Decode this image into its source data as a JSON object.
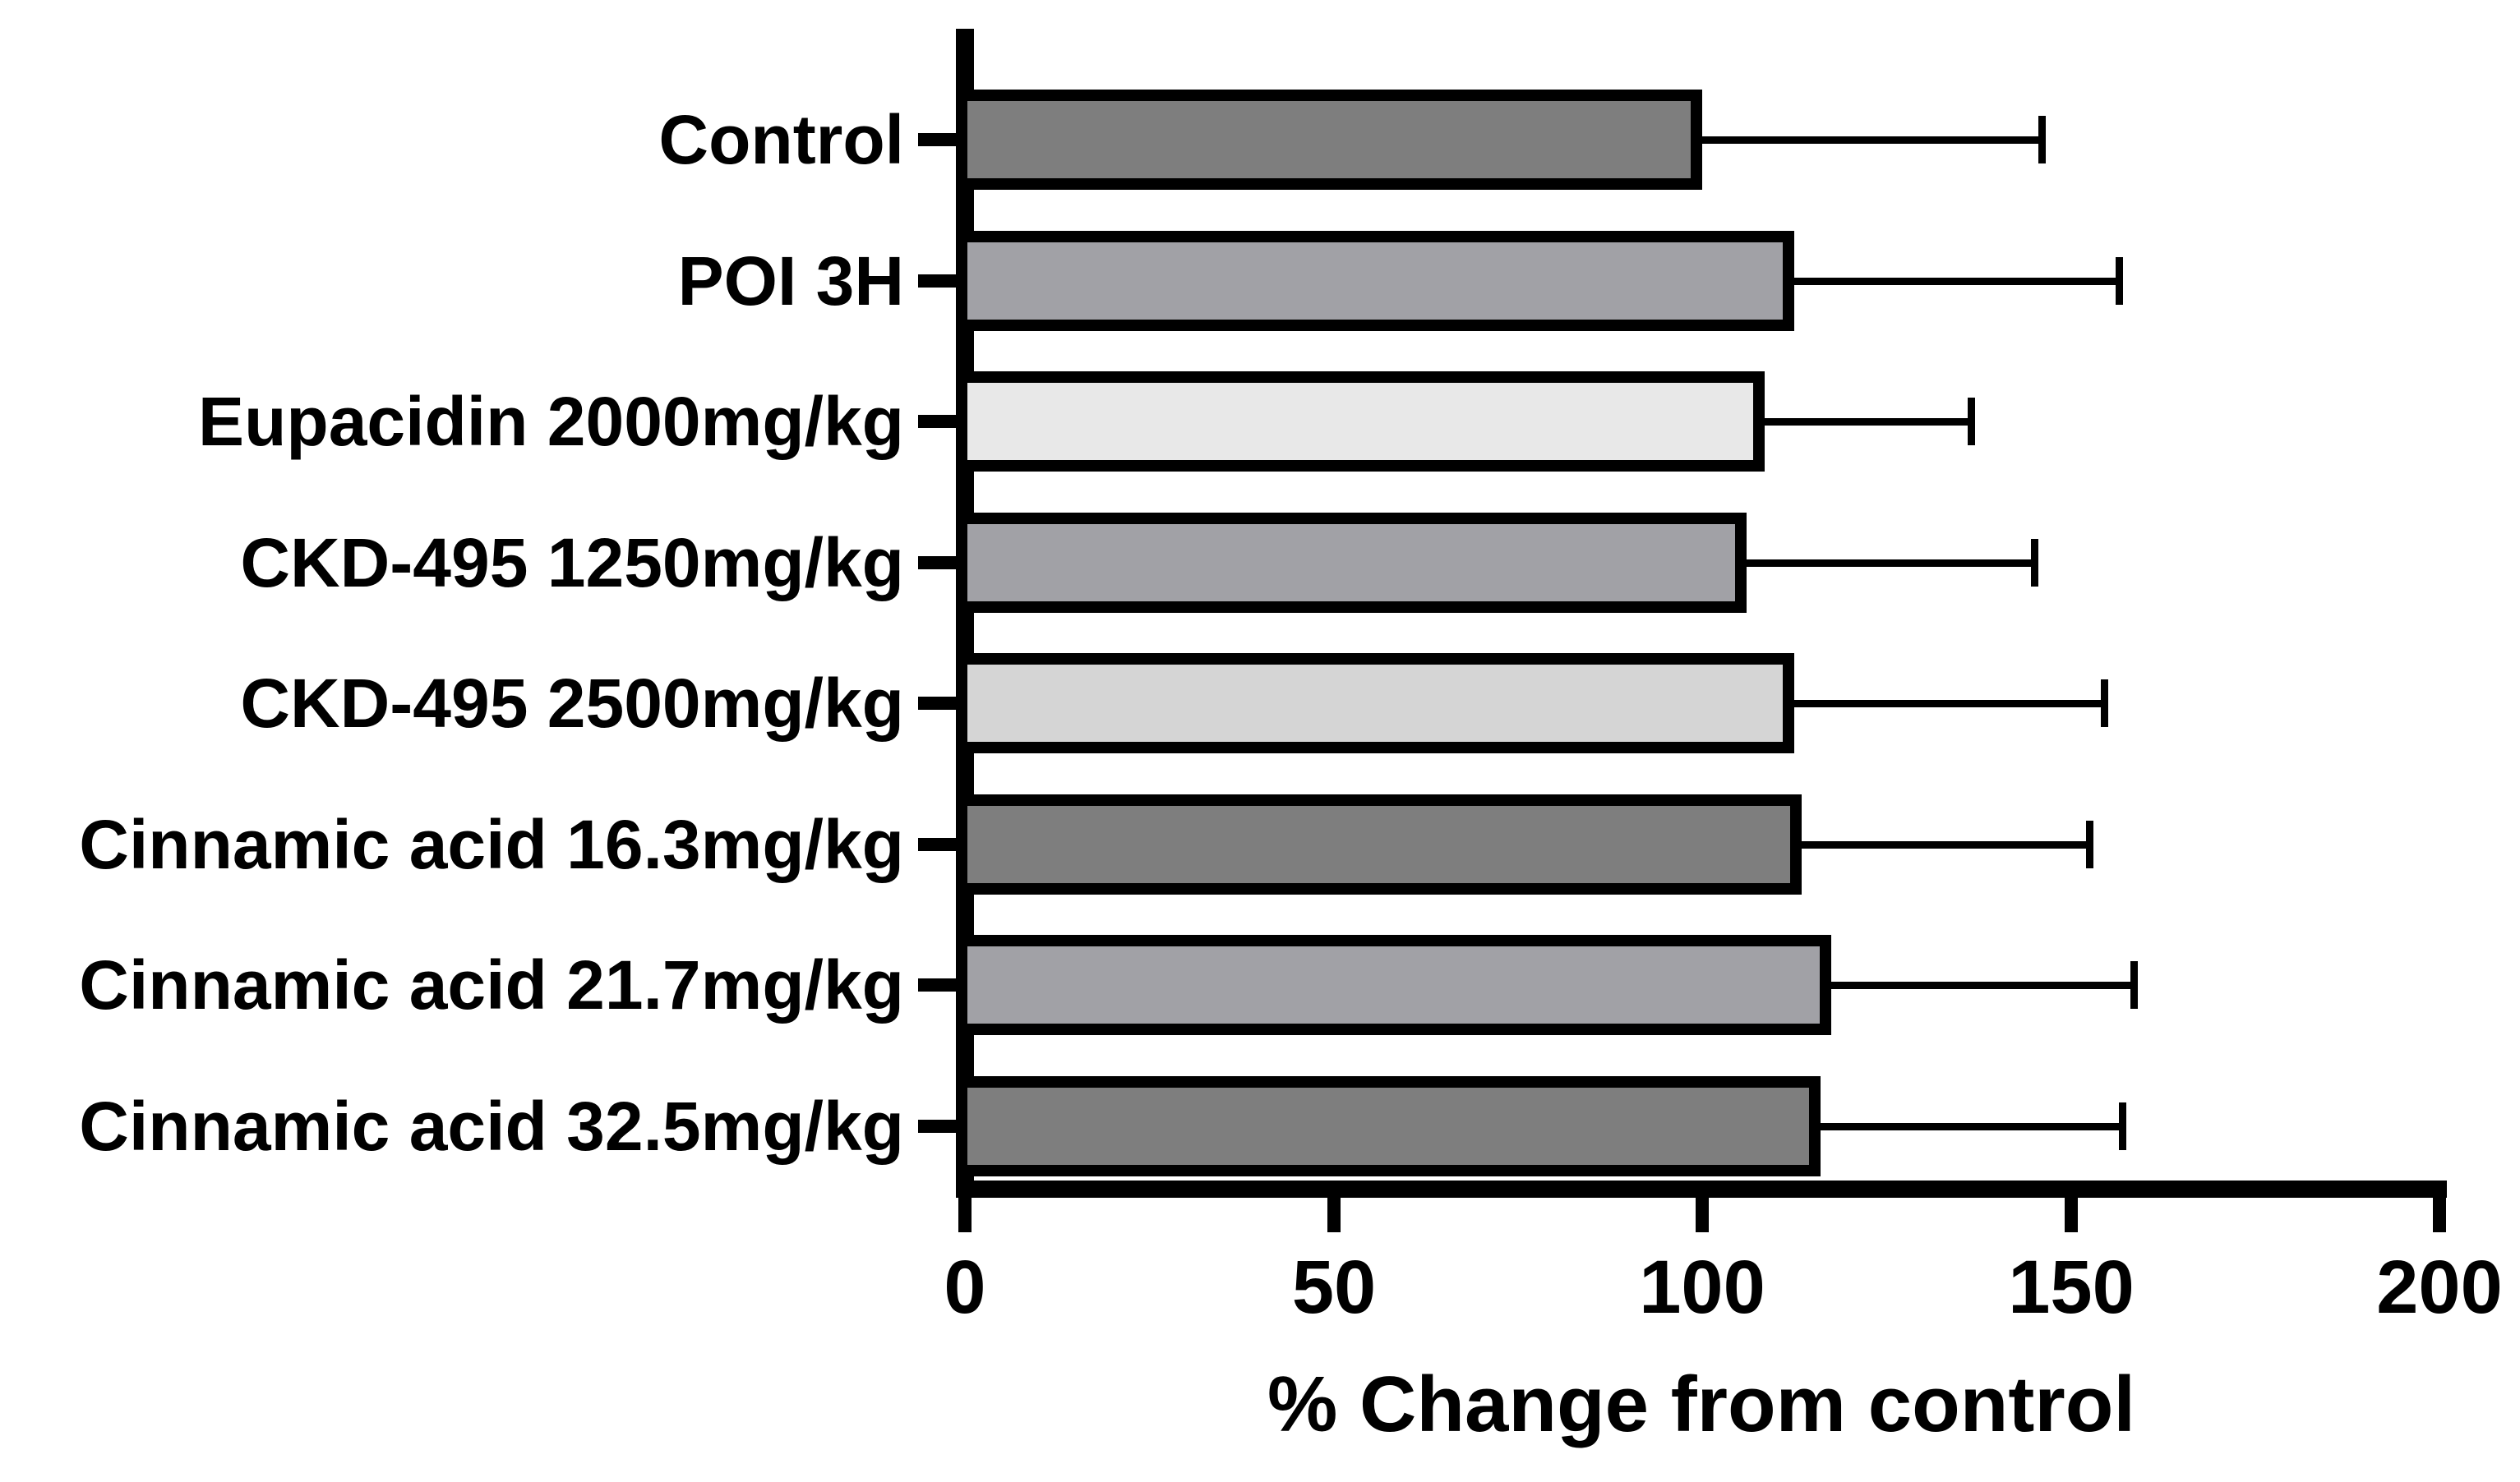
{
  "chart_data": {
    "type": "bar",
    "orientation": "horizontal",
    "title": "",
    "xlabel": "% Change from control",
    "ylabel": "",
    "categories": [
      "Control",
      "POI 3H",
      "Eupacidin 2000mg/kg",
      "CKD-495 1250mg/kg",
      "CKD-495 2500mg/kg",
      "Cinnamic acid 16.3mg/kg",
      "Cinnamic acid 21.7mg/kg",
      "Cinnamic acid 32.5mg/kg"
    ],
    "values": [
      100,
      112.5,
      108.5,
      106,
      112.5,
      113.5,
      117.5,
      116
    ],
    "errors_upper": [
      46,
      44,
      28,
      39,
      42,
      39,
      41,
      41
    ],
    "bar_colors": [
      "#7e7e7e",
      "#a1a1a6",
      "#e8e8e8",
      "#a1a1a6",
      "#d5d5d5",
      "#7e7e7e",
      "#a1a1a6",
      "#7e7e7e"
    ],
    "bar_outline_color": "#000000",
    "xticks": [
      "0",
      "50",
      "100",
      "150",
      "200"
    ],
    "xtick_values": [
      0,
      50,
      100,
      150,
      200
    ],
    "xlim": [
      0,
      200
    ],
    "grid": false,
    "legend": "none",
    "error_bar_style": "upper only, capped",
    "background_color": "#ffffff",
    "axis_color": "#000000",
    "text_color": "#000000"
  }
}
